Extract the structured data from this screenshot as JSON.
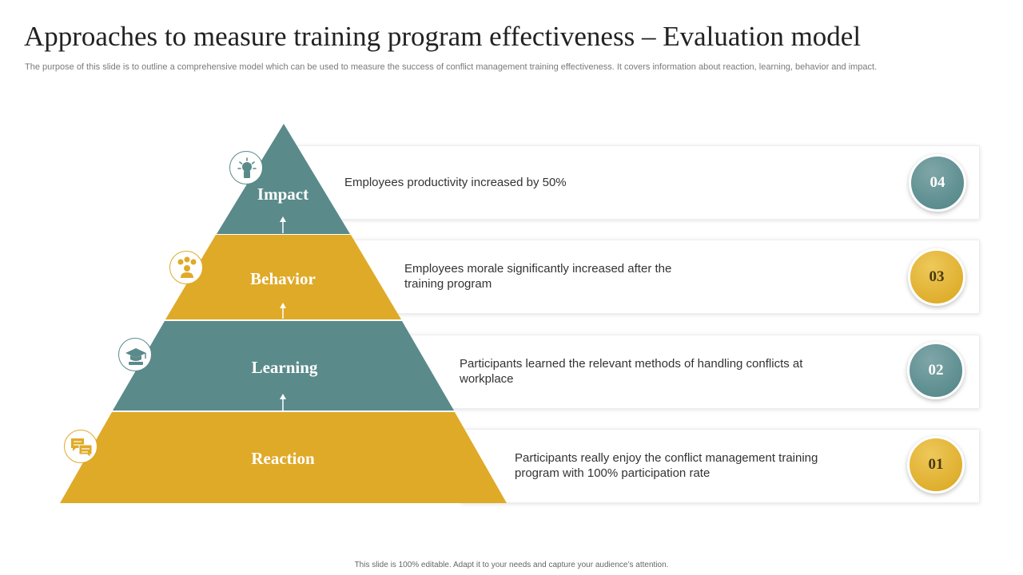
{
  "title": "Approaches to measure training program effectiveness – Evaluation model",
  "subtitle": "The purpose of this slide is to outline a comprehensive model which can be used to measure the success of conflict management training effectiveness. It covers information about reaction, learning, behavior and impact.",
  "footer": "This slide is 100% editable.  Adapt it to your needs and capture your audience’s attention.",
  "colors": {
    "teal": "#5a8a8a",
    "gold": "#dfaa27"
  },
  "levels": [
    {
      "name": "Impact",
      "number": "04",
      "description": "Employees productivity increased by 50%",
      "icon": "lightbulb-head-icon"
    },
    {
      "name": "Behavior",
      "number": "03",
      "description": "Employees morale significantly increased after the training program",
      "icon": "person-emotions-icon"
    },
    {
      "name": "Learning",
      "number": "02",
      "description": "Participants learned the relevant methods of handling conflicts at workplace",
      "icon": "graduation-cap-icon"
    },
    {
      "name": "Reaction",
      "number": "01",
      "description": "Participants really enjoy the conflict management training program with 100% participation rate",
      "icon": "chat-bubbles-icon"
    }
  ]
}
